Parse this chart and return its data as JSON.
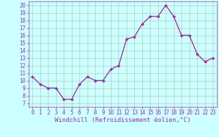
{
  "x": [
    0,
    1,
    2,
    3,
    4,
    5,
    6,
    7,
    8,
    9,
    10,
    11,
    12,
    13,
    14,
    15,
    16,
    17,
    18,
    19,
    20,
    21,
    22,
    23
  ],
  "y": [
    10.5,
    9.5,
    9.0,
    9.0,
    7.5,
    7.5,
    9.5,
    10.5,
    10.0,
    10.0,
    11.5,
    12.0,
    15.5,
    15.8,
    17.5,
    18.5,
    18.5,
    20.0,
    18.5,
    16.0,
    16.0,
    13.5,
    12.5,
    13.0
  ],
  "line_color": "#993399",
  "marker": "D",
  "marker_size": 2,
  "bg_color": "#ccffff",
  "grid_color": "#aabbaa",
  "xlabel": "Windchill (Refroidissement éolien,°C)",
  "xlim": [
    -0.5,
    23.5
  ],
  "ylim": [
    6.5,
    20.5
  ],
  "yticks": [
    7,
    8,
    9,
    10,
    11,
    12,
    13,
    14,
    15,
    16,
    17,
    18,
    19,
    20
  ],
  "xticks": [
    0,
    1,
    2,
    3,
    4,
    5,
    6,
    7,
    8,
    9,
    10,
    11,
    12,
    13,
    14,
    15,
    16,
    17,
    18,
    19,
    20,
    21,
    22,
    23
  ],
  "tick_color": "#993399",
  "tick_fontsize": 5.5,
  "xlabel_fontsize": 6.5,
  "line_width": 1.0
}
